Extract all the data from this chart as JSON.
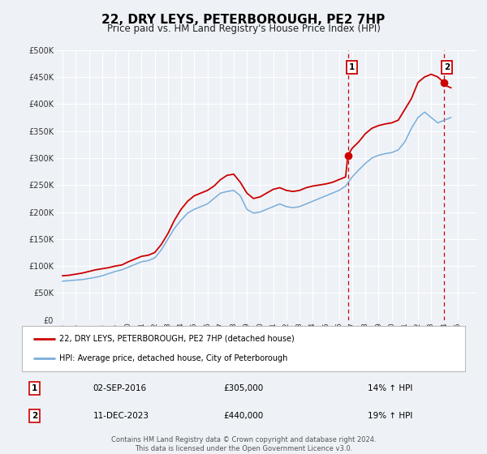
{
  "title": "22, DRY LEYS, PETERBOROUGH, PE2 7HP",
  "subtitle": "Price paid vs. HM Land Registry's House Price Index (HPI)",
  "title_fontsize": 11,
  "subtitle_fontsize": 8.5,
  "xlim": [
    1994.5,
    2026.5
  ],
  "ylim": [
    0,
    500000
  ],
  "yticks": [
    0,
    50000,
    100000,
    150000,
    200000,
    250000,
    300000,
    350000,
    400000,
    450000,
    500000
  ],
  "ytick_labels": [
    "£0",
    "£50K",
    "£100K",
    "£150K",
    "£200K",
    "£250K",
    "£300K",
    "£350K",
    "£400K",
    "£450K",
    "£500K"
  ],
  "xticks": [
    1995,
    1996,
    1997,
    1998,
    1999,
    2000,
    2001,
    2002,
    2003,
    2004,
    2005,
    2006,
    2007,
    2008,
    2009,
    2010,
    2011,
    2012,
    2013,
    2014,
    2015,
    2016,
    2017,
    2018,
    2019,
    2020,
    2021,
    2022,
    2023,
    2024,
    2025
  ],
  "background_color": "#eef2f7",
  "grid_color": "#ffffff",
  "red_line_color": "#cc0000",
  "blue_line_color": "#7aadda",
  "marker1_x": 2016.67,
  "marker1_y": 305000,
  "marker2_x": 2023.95,
  "marker2_y": 440000,
  "vline1_x": 2016.67,
  "vline2_x": 2023.95,
  "annotation1_label": "1",
  "annotation2_label": "2",
  "legend_red_label": "22, DRY LEYS, PETERBOROUGH, PE2 7HP (detached house)",
  "legend_blue_label": "HPI: Average price, detached house, City of Peterborough",
  "table_row1": [
    "1",
    "02-SEP-2016",
    "£305,000",
    "14% ↑ HPI"
  ],
  "table_row2": [
    "2",
    "11-DEC-2023",
    "£440,000",
    "19% ↑ HPI"
  ],
  "footer1": "Contains HM Land Registry data © Crown copyright and database right 2024.",
  "footer2": "This data is licensed under the Open Government Licence v3.0.",
  "red_x": [
    1995.0,
    1995.5,
    1996.0,
    1996.5,
    1997.0,
    1997.5,
    1998.0,
    1998.5,
    1999.0,
    1999.5,
    2000.0,
    2000.5,
    2001.0,
    2001.5,
    2002.0,
    2002.5,
    2003.0,
    2003.5,
    2004.0,
    2004.5,
    2005.0,
    2005.5,
    2006.0,
    2006.5,
    2007.0,
    2007.5,
    2008.0,
    2008.5,
    2009.0,
    2009.5,
    2010.0,
    2010.5,
    2011.0,
    2011.5,
    2012.0,
    2012.5,
    2013.0,
    2013.5,
    2014.0,
    2014.5,
    2015.0,
    2015.5,
    2016.0,
    2016.5,
    2016.67,
    2017.0,
    2017.5,
    2018.0,
    2018.5,
    2019.0,
    2019.5,
    2020.0,
    2020.5,
    2021.0,
    2021.5,
    2022.0,
    2022.5,
    2023.0,
    2023.5,
    2023.95,
    2024.0,
    2024.5
  ],
  "red_y": [
    82000,
    83000,
    85000,
    87000,
    90000,
    93000,
    95000,
    97000,
    100000,
    102000,
    108000,
    113000,
    118000,
    120000,
    125000,
    140000,
    160000,
    185000,
    205000,
    220000,
    230000,
    235000,
    240000,
    248000,
    260000,
    268000,
    270000,
    255000,
    235000,
    225000,
    228000,
    235000,
    242000,
    245000,
    240000,
    238000,
    240000,
    245000,
    248000,
    250000,
    252000,
    255000,
    260000,
    265000,
    305000,
    318000,
    330000,
    345000,
    355000,
    360000,
    363000,
    365000,
    370000,
    390000,
    410000,
    440000,
    450000,
    455000,
    450000,
    440000,
    435000,
    430000
  ],
  "blue_x": [
    1995.0,
    1995.5,
    1996.0,
    1996.5,
    1997.0,
    1997.5,
    1998.0,
    1998.5,
    1999.0,
    1999.5,
    2000.0,
    2000.5,
    2001.0,
    2001.5,
    2002.0,
    2002.5,
    2003.0,
    2003.5,
    2004.0,
    2004.5,
    2005.0,
    2005.5,
    2006.0,
    2006.5,
    2007.0,
    2007.5,
    2008.0,
    2008.5,
    2009.0,
    2009.5,
    2010.0,
    2010.5,
    2011.0,
    2011.5,
    2012.0,
    2012.5,
    2013.0,
    2013.5,
    2014.0,
    2014.5,
    2015.0,
    2015.5,
    2016.0,
    2016.5,
    2017.0,
    2017.5,
    2018.0,
    2018.5,
    2019.0,
    2019.5,
    2020.0,
    2020.5,
    2021.0,
    2021.5,
    2022.0,
    2022.5,
    2023.0,
    2023.5,
    2024.0,
    2024.5
  ],
  "blue_y": [
    72000,
    73000,
    74000,
    75000,
    77000,
    79000,
    82000,
    86000,
    90000,
    93000,
    98000,
    103000,
    108000,
    110000,
    115000,
    130000,
    150000,
    170000,
    185000,
    198000,
    205000,
    210000,
    215000,
    225000,
    235000,
    238000,
    240000,
    230000,
    205000,
    198000,
    200000,
    205000,
    210000,
    215000,
    210000,
    208000,
    210000,
    215000,
    220000,
    225000,
    230000,
    235000,
    240000,
    248000,
    265000,
    278000,
    290000,
    300000,
    305000,
    308000,
    310000,
    315000,
    330000,
    355000,
    375000,
    385000,
    375000,
    365000,
    370000,
    375000
  ]
}
